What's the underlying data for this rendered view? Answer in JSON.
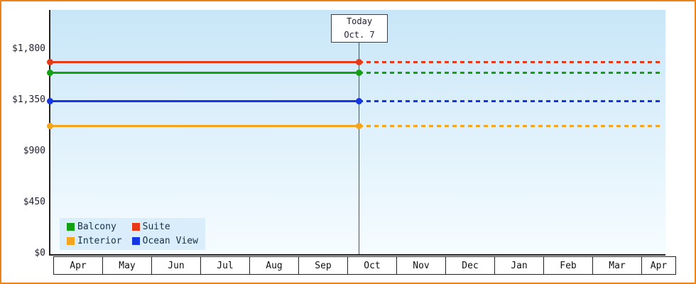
{
  "chart_data": {
    "type": "line",
    "x_categories": [
      "Apr",
      "May",
      "Jun",
      "Jul",
      "Aug",
      "Sep",
      "Oct",
      "Nov",
      "Dec",
      "Jan",
      "Feb",
      "Mar",
      "Apr"
    ],
    "y_axis": [
      {
        "label": "$1,800",
        "value": 1800
      },
      {
        "label": "$1,350",
        "value": 1350
      },
      {
        "label": "$900",
        "value": 900
      },
      {
        "label": "$450",
        "value": 450
      },
      {
        "label": "$0",
        "value": 0
      }
    ],
    "ylim": [
      0,
      1800
    ],
    "today": {
      "label_line1": "Today",
      "label_line2": "Oct. 7",
      "month_index": 6,
      "day_fraction": 0.23
    },
    "series": [
      {
        "name": "Suite",
        "color": "#e63917",
        "value": 1690,
        "solid_until": "today",
        "dotted_after": true
      },
      {
        "name": "Balcony",
        "color": "#13a113",
        "value": 1600,
        "solid_until": "today",
        "dotted_after": true
      },
      {
        "name": "Ocean View",
        "color": "#1536e0",
        "value": 1350,
        "solid_until": "today",
        "dotted_after": true
      },
      {
        "name": "Interior",
        "color": "#f3a51d",
        "value": 1130,
        "solid_until": "today",
        "dotted_after": true
      }
    ],
    "legend": [
      {
        "name": "Balcony",
        "color": "#13a113"
      },
      {
        "name": "Suite",
        "color": "#e63917"
      },
      {
        "name": "Interior",
        "color": "#f3a51d"
      },
      {
        "name": "Ocean View",
        "color": "#1536e0"
      }
    ],
    "colors": {
      "page_border": "#f08318",
      "plot_bg_top": "#c8e6f8",
      "plot_bg_bottom": "#f6fcff",
      "axis": "#222222",
      "today_line": "#49525c",
      "legend_bg": "#d9edfa"
    }
  }
}
